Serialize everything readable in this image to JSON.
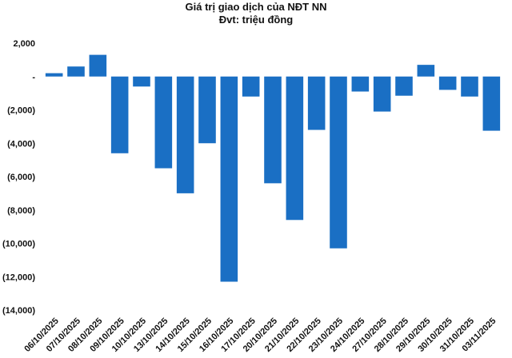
{
  "chart_data": {
    "type": "bar",
    "title": "Giá trị giao dịch của NĐT NN",
    "subtitle": "Đvt: triệu đồng",
    "xlabel": "",
    "ylabel": "",
    "ylim": [
      -14000,
      2000
    ],
    "yticks": [
      2000,
      0,
      -2000,
      -4000,
      -6000,
      -8000,
      -10000,
      -12000,
      -14000
    ],
    "ytick_labels": [
      "2,000",
      "-",
      "(2,000)",
      "(4,000)",
      "(6,000)",
      "(8,000)",
      "(10,000)",
      "(12,000)",
      "(14,000)"
    ],
    "grid": false,
    "bar_color": "#1a6fc4",
    "categories": [
      "06/10/2025",
      "07/10/2025",
      "08/10/2025",
      "09/10/2025",
      "10/10/2025",
      "13/10/2025",
      "14/10/2025",
      "15/10/2025",
      "16/10/2025",
      "17/10/2025",
      "20/10/2025",
      "21/10/2025",
      "22/10/2025",
      "23/10/2025",
      "24/10/2025",
      "27/10/2025",
      "28/10/2025",
      "29/10/2025",
      "30/10/2025",
      "31/10/2025",
      "03/11/2025"
    ],
    "values": [
      200,
      600,
      1300,
      -4600,
      -600,
      -5500,
      -7000,
      -4000,
      -12300,
      -1200,
      -6400,
      -8600,
      -3200,
      -10300,
      -900,
      -2100,
      -1150,
      700,
      -800,
      -1200,
      -3250
    ]
  }
}
